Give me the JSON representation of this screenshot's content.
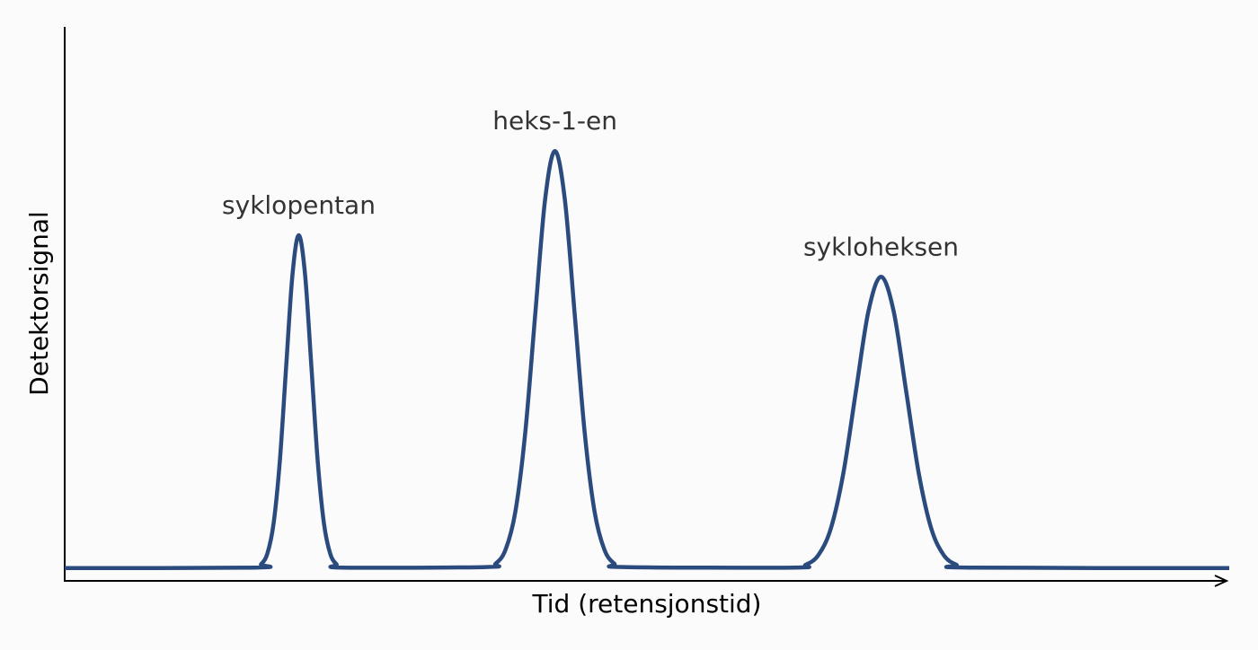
{
  "chart_data": {
    "type": "line",
    "xlabel": "Tid (retensjonstid)",
    "ylabel": "Detektorsignal",
    "xlim": [
      0,
      100
    ],
    "ylim": [
      0,
      100
    ],
    "x": [
      0,
      16.32,
      16.86,
      17.4,
      17.94,
      18.48,
      19.02,
      19.56,
      20.1,
      20.64,
      21.18,
      21.72,
      22.26,
      22.8,
      23.34,
      23.88,
      36.15,
      37.0,
      37.85,
      38.7,
      39.55,
      40.4,
      41.25,
      42.1,
      42.95,
      43.8,
      44.65,
      45.5,
      46.35,
      47.2,
      48.05,
      62.54,
      63.62,
      64.7,
      65.78,
      66.86,
      67.94,
      69.02,
      70.1,
      71.18,
      72.26,
      73.34,
      74.42,
      75.5,
      76.58,
      77.66,
      100
    ],
    "series": [
      {
        "color": "#2b4a7e",
        "values": [
          2.3,
          2.4,
          3.0,
          4.9,
          10.4,
          21.8,
          38.8,
          55.3,
          62.4,
          55.3,
          38.8,
          21.8,
          10.4,
          4.9,
          3.0,
          2.4,
          2.5,
          3.1,
          5.6,
          12.5,
          26.8,
          48.0,
          68.8,
          77.6,
          68.8,
          48.0,
          26.8,
          12.5,
          5.6,
          3.1,
          2.5,
          2.4,
          2.9,
          4.6,
          9.4,
          19.4,
          34.2,
          48.7,
          54.9,
          48.7,
          34.2,
          19.4,
          9.4,
          4.6,
          2.9,
          2.4,
          2.3
        ]
      }
    ],
    "annotations": [
      "syklopentan",
      "heks-1-en",
      "sykloheksen"
    ]
  }
}
